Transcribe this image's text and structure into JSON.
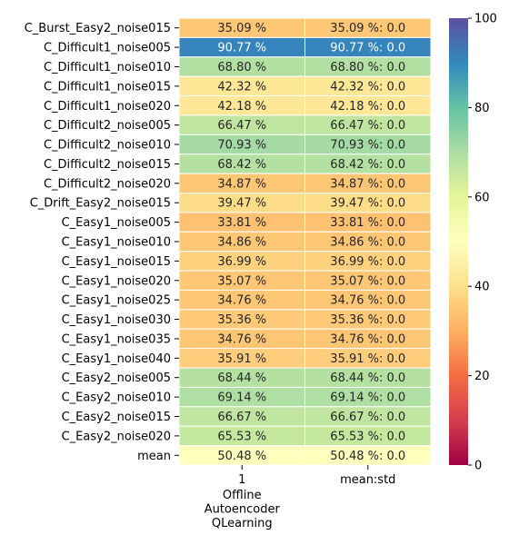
{
  "chart_data": {
    "type": "heatmap",
    "rows": [
      "C_Burst_Easy2_noise015",
      "C_Difficult1_noise005",
      "C_Difficult1_noise010",
      "C_Difficult1_noise015",
      "C_Difficult1_noise020",
      "C_Difficult2_noise005",
      "C_Difficult2_noise010",
      "C_Difficult2_noise015",
      "C_Difficult2_noise020",
      "C_Drift_Easy2_noise015",
      "C_Easy1_noise005",
      "C_Easy1_noise010",
      "C_Easy1_noise015",
      "C_Easy1_noise020",
      "C_Easy1_noise025",
      "C_Easy1_noise030",
      "C_Easy1_noise035",
      "C_Easy1_noise040",
      "C_Easy2_noise005",
      "C_Easy2_noise010",
      "C_Easy2_noise015",
      "C_Easy2_noise020",
      "mean"
    ],
    "columns": [
      "1",
      "mean:std"
    ],
    "x_group_label_lines": [
      "Offline",
      "Autoencoder",
      "QLearning"
    ],
    "values": [
      35.09,
      90.77,
      68.8,
      42.32,
      42.18,
      66.47,
      70.93,
      68.42,
      34.87,
      39.47,
      33.81,
      34.86,
      36.99,
      35.07,
      34.76,
      35.36,
      34.76,
      35.91,
      68.44,
      69.14,
      66.67,
      65.53,
      50.48
    ],
    "cells": [
      [
        "35.09 %",
        "35.09 %: 0.0"
      ],
      [
        "90.77 %",
        "90.77 %: 0.0"
      ],
      [
        "68.80 %",
        "68.80 %: 0.0"
      ],
      [
        "42.32 %",
        "42.32 %: 0.0"
      ],
      [
        "42.18 %",
        "42.18 %: 0.0"
      ],
      [
        "66.47 %",
        "66.47 %: 0.0"
      ],
      [
        "70.93 %",
        "70.93 %: 0.0"
      ],
      [
        "68.42 %",
        "68.42 %: 0.0"
      ],
      [
        "34.87 %",
        "34.87 %: 0.0"
      ],
      [
        "39.47 %",
        "39.47 %: 0.0"
      ],
      [
        "33.81 %",
        "33.81 %: 0.0"
      ],
      [
        "34.86 %",
        "34.86 %: 0.0"
      ],
      [
        "36.99 %",
        "36.99 %: 0.0"
      ],
      [
        "35.07 %",
        "35.07 %: 0.0"
      ],
      [
        "34.76 %",
        "34.76 %: 0.0"
      ],
      [
        "35.36 %",
        "35.36 %: 0.0"
      ],
      [
        "34.76 %",
        "34.76 %: 0.0"
      ],
      [
        "35.91 %",
        "35.91 %: 0.0"
      ],
      [
        "68.44 %",
        "68.44 %: 0.0"
      ],
      [
        "69.14 %",
        "69.14 %: 0.0"
      ],
      [
        "66.67 %",
        "66.67 %: 0.0"
      ],
      [
        "65.53 %",
        "65.53 %: 0.0"
      ],
      [
        "50.48 %",
        "50.48 %: 0.0"
      ]
    ],
    "colorbar": {
      "colormap": "Spectral",
      "range": [
        0,
        100
      ],
      "ticks": [
        "0",
        "20",
        "40",
        "60",
        "80",
        "100"
      ]
    },
    "grid": true,
    "legend": "colorbar-right"
  }
}
